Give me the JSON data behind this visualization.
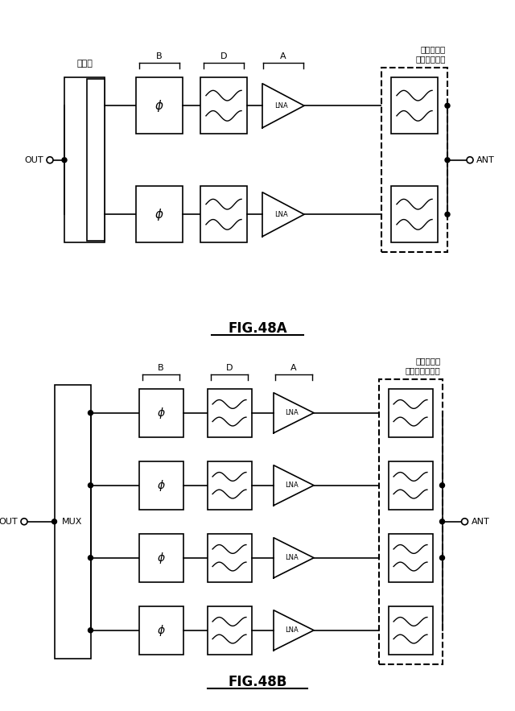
{
  "bg_color": "#ffffff",
  "fig48a": {
    "title": "FIG.48A",
    "label_combiner": "結合器",
    "label_filter_dashed": "フィルタ／\nダイプレクサ",
    "label_out": "OUT",
    "label_ant": "ANT",
    "brace_labels": [
      "B",
      "D",
      "A"
    ]
  },
  "fig48b": {
    "title": "FIG.48B",
    "label_mux": "MUX",
    "label_filter_dashed": "フィルタ／\nマルチプレクサ",
    "label_out": "OUT",
    "label_ant": "ANT",
    "brace_labels": [
      "B",
      "D",
      "A"
    ]
  }
}
